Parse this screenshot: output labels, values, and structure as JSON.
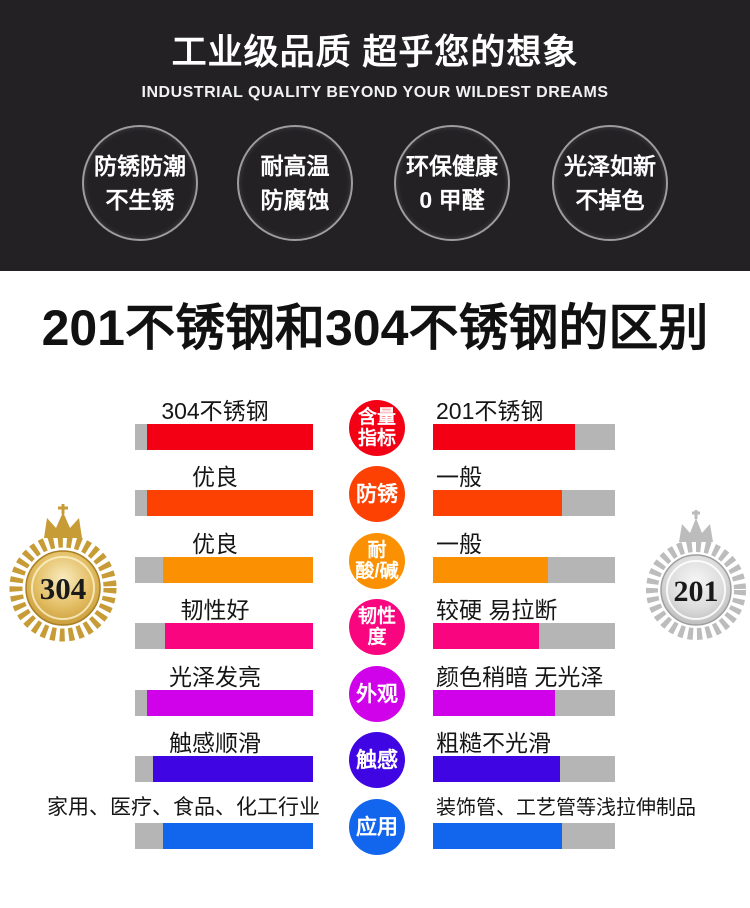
{
  "hero": {
    "title": "工业级品质 超乎您的想象",
    "subtitle": "INDUSTRIAL QUALITY BEYOND YOUR WILDEST DREAMS",
    "features": [
      {
        "line1": "防锈防潮",
        "line2": "不生锈"
      },
      {
        "line1": "耐高温",
        "line2": "防腐蚀"
      },
      {
        "line1": "环保健康",
        "line2": "0 甲醛"
      },
      {
        "line1": "光泽如新",
        "line2": "不掉色"
      }
    ]
  },
  "section_title": "201不锈钢和304不锈钢的区别",
  "comparison": {
    "left_medal": {
      "label": "304",
      "metal": "gold",
      "face_color": "#e8c46a",
      "rim_color": "#c79b35"
    },
    "right_medal": {
      "label": "201",
      "metal": "silver",
      "face_color": "#e2e2e2",
      "rim_color": "#b9b9b9"
    },
    "track_color": "#b5b5b5",
    "rows": [
      {
        "metric_line1": "含量",
        "metric_line2": "指标",
        "color": "#f30015",
        "left": {
          "label": "304不锈钢",
          "fill": 0.93
        },
        "right": {
          "label": "201不锈钢",
          "fill": 0.78
        }
      },
      {
        "metric_line1": "防锈",
        "metric_line2": "",
        "color": "#fc4103",
        "left": {
          "label": "优良",
          "fill": 0.93
        },
        "right": {
          "label": "一般",
          "fill": 0.71
        }
      },
      {
        "metric_line1": "耐",
        "metric_line2": "酸/碱",
        "color": "#fb9102",
        "left": {
          "label": "优良",
          "fill": 0.84
        },
        "right": {
          "label": "一般",
          "fill": 0.63
        }
      },
      {
        "metric_line1": "韧性",
        "metric_line2": "度",
        "color": "#f8057f",
        "left": {
          "label": "韧性好",
          "fill": 0.83
        },
        "right": {
          "label": "较硬 易拉断",
          "fill": 0.58
        }
      },
      {
        "metric_line1": "外观",
        "metric_line2": "",
        "color": "#d002ea",
        "left": {
          "label": "光泽发亮",
          "fill": 0.93
        },
        "right": {
          "label": "颜色稍暗 无光泽",
          "fill": 0.67
        }
      },
      {
        "metric_line1": "触感",
        "metric_line2": "",
        "color": "#3f06e3",
        "left": {
          "label": "触感顺滑",
          "fill": 0.9
        },
        "right": {
          "label": "粗糙不光滑",
          "fill": 0.7
        }
      },
      {
        "metric_line1": "应用",
        "metric_line2": "",
        "color": "#1266ee",
        "left": {
          "label": "家用、医疗、食品、化工行业",
          "fill": 0.84
        },
        "right": {
          "label": "装饰管、工艺管等浅拉伸制品",
          "fill": 0.71
        }
      }
    ]
  },
  "chart_data": {
    "type": "bar",
    "title": "201不锈钢和304不锈钢的区别",
    "categories": [
      "含量指标",
      "防锈",
      "耐酸/碱",
      "韧性度",
      "外观",
      "触感",
      "应用"
    ],
    "series": [
      {
        "name": "304不锈钢",
        "value_labels": [
          "304不锈钢",
          "优良",
          "优良",
          "韧性好",
          "光泽发亮",
          "触感顺滑",
          "家用、医疗、食品、化工行业"
        ],
        "values": [
          0.93,
          0.93,
          0.84,
          0.83,
          0.93,
          0.9,
          0.84
        ]
      },
      {
        "name": "201不锈钢",
        "value_labels": [
          "201不锈钢",
          "一般",
          "一般",
          "较硬 易拉断",
          "颜色稍暗 无光泽",
          "粗糙不光滑",
          "装饰管、工艺管等浅拉伸制品"
        ],
        "values": [
          0.78,
          0.71,
          0.63,
          0.58,
          0.67,
          0.7,
          0.71
        ]
      }
    ],
    "row_colors": [
      "#f30015",
      "#fc4103",
      "#fb9102",
      "#f8057f",
      "#d002ea",
      "#3f06e3",
      "#1266ee"
    ],
    "track_color": "#b5b5b5",
    "xlim": [
      0,
      1
    ],
    "grid": false,
    "legend_position": "none",
    "orientation": "horizontal-mirrored"
  }
}
